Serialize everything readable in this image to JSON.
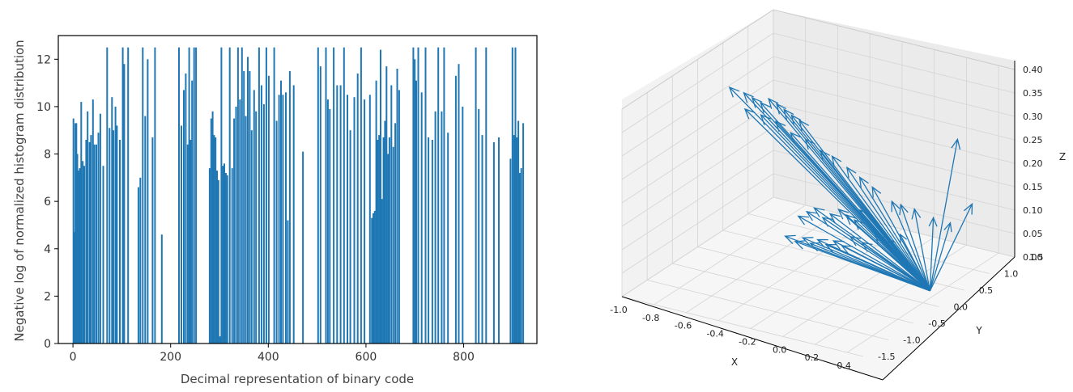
{
  "chart_data": [
    {
      "type": "bar",
      "xlabel": "Decimal representation of binary code",
      "ylabel": "Negative log of normalized histogram distribution",
      "xlim": [
        -30,
        950
      ],
      "ylim": [
        0,
        13
      ],
      "xticks": [
        0,
        200,
        400,
        600,
        800
      ],
      "yticks": [
        0,
        2,
        4,
        6,
        8,
        10,
        12
      ],
      "grid": false,
      "color": "#1f77b4",
      "bars": [
        {
          "x": 1,
          "y": 9.5
        },
        {
          "x": 3,
          "y": 4.7
        },
        {
          "x": 5,
          "y": 9.3
        },
        {
          "x": 7,
          "y": 9.3
        },
        {
          "x": 9,
          "y": 8.0
        },
        {
          "x": 11,
          "y": 7.3
        },
        {
          "x": 14,
          "y": 7.4
        },
        {
          "x": 17,
          "y": 10.2
        },
        {
          "x": 20,
          "y": 7.7
        },
        {
          "x": 23,
          "y": 7.5
        },
        {
          "x": 27,
          "y": 8.6
        },
        {
          "x": 30,
          "y": 9.8
        },
        {
          "x": 34,
          "y": 8.5
        },
        {
          "x": 37,
          "y": 8.8
        },
        {
          "x": 41,
          "y": 10.3
        },
        {
          "x": 44,
          "y": 8.4
        },
        {
          "x": 48,
          "y": 8.4
        },
        {
          "x": 52,
          "y": 8.9
        },
        {
          "x": 56,
          "y": 9.7
        },
        {
          "x": 62,
          "y": 7.5
        },
        {
          "x": 70,
          "y": 12.5
        },
        {
          "x": 75,
          "y": 9.1
        },
        {
          "x": 80,
          "y": 10.4
        },
        {
          "x": 83,
          "y": 9.0
        },
        {
          "x": 87,
          "y": 10.0
        },
        {
          "x": 90,
          "y": 9.2
        },
        {
          "x": 96,
          "y": 8.6
        },
        {
          "x": 102,
          "y": 12.5
        },
        {
          "x": 105,
          "y": 11.8
        },
        {
          "x": 113,
          "y": 12.5
        },
        {
          "x": 134,
          "y": 6.6
        },
        {
          "x": 138,
          "y": 7.0
        },
        {
          "x": 143,
          "y": 12.5
        },
        {
          "x": 148,
          "y": 9.6
        },
        {
          "x": 153,
          "y": 12.0
        },
        {
          "x": 163,
          "y": 8.7
        },
        {
          "x": 168,
          "y": 12.5
        },
        {
          "x": 182,
          "y": 4.6
        },
        {
          "x": 217,
          "y": 12.5
        },
        {
          "x": 222,
          "y": 9.2
        },
        {
          "x": 227,
          "y": 10.7
        },
        {
          "x": 231,
          "y": 11.4
        },
        {
          "x": 235,
          "y": 8.4
        },
        {
          "x": 238,
          "y": 12.5
        },
        {
          "x": 241,
          "y": 8.6
        },
        {
          "x": 244,
          "y": 11.1
        },
        {
          "x": 248,
          "y": 12.5
        },
        {
          "x": 252,
          "y": 12.5
        },
        {
          "x": 280,
          "y": 7.4
        },
        {
          "x": 283,
          "y": 9.5
        },
        {
          "x": 286,
          "y": 9.8
        },
        {
          "x": 289,
          "y": 8.8
        },
        {
          "x": 292,
          "y": 8.7
        },
        {
          "x": 295,
          "y": 7.3
        },
        {
          "x": 298,
          "y": 6.9
        },
        {
          "x": 301,
          "y": 0.3
        },
        {
          "x": 304,
          "y": 12.5
        },
        {
          "x": 307,
          "y": 7.5
        },
        {
          "x": 310,
          "y": 7.6
        },
        {
          "x": 313,
          "y": 7.2
        },
        {
          "x": 316,
          "y": 7.1
        },
        {
          "x": 321,
          "y": 12.5
        },
        {
          "x": 326,
          "y": 7.4
        },
        {
          "x": 330,
          "y": 9.5
        },
        {
          "x": 334,
          "y": 10.0
        },
        {
          "x": 338,
          "y": 12.5
        },
        {
          "x": 342,
          "y": 10.3
        },
        {
          "x": 346,
          "y": 12.5
        },
        {
          "x": 350,
          "y": 11.5
        },
        {
          "x": 354,
          "y": 9.6
        },
        {
          "x": 358,
          "y": 12.1
        },
        {
          "x": 362,
          "y": 11.5
        },
        {
          "x": 366,
          "y": 9.0
        },
        {
          "x": 371,
          "y": 10.7
        },
        {
          "x": 375,
          "y": 9.8
        },
        {
          "x": 381,
          "y": 12.5
        },
        {
          "x": 386,
          "y": 10.9
        },
        {
          "x": 391,
          "y": 10.1
        },
        {
          "x": 396,
          "y": 12.5
        },
        {
          "x": 401,
          "y": 11.3
        },
        {
          "x": 412,
          "y": 12.5
        },
        {
          "x": 417,
          "y": 9.4
        },
        {
          "x": 422,
          "y": 10.5
        },
        {
          "x": 426,
          "y": 11.1
        },
        {
          "x": 430,
          "y": 10.5
        },
        {
          "x": 436,
          "y": 10.6
        },
        {
          "x": 440,
          "y": 5.2
        },
        {
          "x": 444,
          "y": 11.5
        },
        {
          "x": 452,
          "y": 10.9
        },
        {
          "x": 471,
          "y": 8.1
        },
        {
          "x": 502,
          "y": 12.5
        },
        {
          "x": 507,
          "y": 11.7
        },
        {
          "x": 518,
          "y": 12.5
        },
        {
          "x": 522,
          "y": 10.3
        },
        {
          "x": 526,
          "y": 9.9
        },
        {
          "x": 534,
          "y": 12.5
        },
        {
          "x": 541,
          "y": 10.9
        },
        {
          "x": 548,
          "y": 10.9
        },
        {
          "x": 555,
          "y": 12.5
        },
        {
          "x": 562,
          "y": 10.5
        },
        {
          "x": 568,
          "y": 9.0
        },
        {
          "x": 576,
          "y": 10.4
        },
        {
          "x": 583,
          "y": 11.4
        },
        {
          "x": 590,
          "y": 12.5
        },
        {
          "x": 597,
          "y": 10.3
        },
        {
          "x": 608,
          "y": 10.5
        },
        {
          "x": 612,
          "y": 5.3
        },
        {
          "x": 615,
          "y": 5.5
        },
        {
          "x": 618,
          "y": 5.6
        },
        {
          "x": 621,
          "y": 11.1
        },
        {
          "x": 624,
          "y": 8.6
        },
        {
          "x": 627,
          "y": 8.8
        },
        {
          "x": 630,
          "y": 12.4
        },
        {
          "x": 633,
          "y": 6.1
        },
        {
          "x": 636,
          "y": 8.7
        },
        {
          "x": 639,
          "y": 9.4
        },
        {
          "x": 642,
          "y": 11.7
        },
        {
          "x": 645,
          "y": 8.0
        },
        {
          "x": 648,
          "y": 8.7
        },
        {
          "x": 652,
          "y": 10.9
        },
        {
          "x": 656,
          "y": 8.3
        },
        {
          "x": 660,
          "y": 9.3
        },
        {
          "x": 664,
          "y": 11.6
        },
        {
          "x": 668,
          "y": 10.7
        },
        {
          "x": 697,
          "y": 12.5
        },
        {
          "x": 700,
          "y": 12.0
        },
        {
          "x": 703,
          "y": 11.1
        },
        {
          "x": 707,
          "y": 12.5
        },
        {
          "x": 714,
          "y": 10.6
        },
        {
          "x": 722,
          "y": 12.5
        },
        {
          "x": 728,
          "y": 8.7
        },
        {
          "x": 736,
          "y": 8.6
        },
        {
          "x": 742,
          "y": 9.8
        },
        {
          "x": 748,
          "y": 12.5
        },
        {
          "x": 755,
          "y": 9.8
        },
        {
          "x": 760,
          "y": 12.5
        },
        {
          "x": 768,
          "y": 8.9
        },
        {
          "x": 784,
          "y": 11.3
        },
        {
          "x": 790,
          "y": 11.8
        },
        {
          "x": 798,
          "y": 10.0
        },
        {
          "x": 825,
          "y": 12.5
        },
        {
          "x": 831,
          "y": 9.9
        },
        {
          "x": 838,
          "y": 8.8
        },
        {
          "x": 846,
          "y": 12.5
        },
        {
          "x": 862,
          "y": 8.5
        },
        {
          "x": 872,
          "y": 8.7
        },
        {
          "x": 896,
          "y": 7.8
        },
        {
          "x": 900,
          "y": 12.5
        },
        {
          "x": 903,
          "y": 8.8
        },
        {
          "x": 906,
          "y": 12.5
        },
        {
          "x": 909,
          "y": 8.7
        },
        {
          "x": 912,
          "y": 9.4
        },
        {
          "x": 915,
          "y": 7.2
        },
        {
          "x": 918,
          "y": 7.4
        },
        {
          "x": 922,
          "y": 9.3
        }
      ]
    },
    {
      "type": "quiver3d",
      "xlabel": "X",
      "ylabel": "Y",
      "zlabel": "Z",
      "xlim": [
        -1.0,
        0.5
      ],
      "ylim": [
        -1.5,
        1.5
      ],
      "zlim": [
        0.0,
        0.4
      ],
      "xticks": [
        "-1.0",
        "-0.8",
        "-0.6",
        "-0.4",
        "-0.2",
        "0.0",
        "0.2",
        "0.4"
      ],
      "yticks": [
        "-1.5",
        "-1.0",
        "-0.5",
        "0.0",
        "0.5",
        "1.0",
        "1.5"
      ],
      "zticks": [
        "0.00",
        "0.05",
        "0.10",
        "0.15",
        "0.20",
        "0.25",
        "0.30",
        "0.35",
        "0.40"
      ],
      "grid": true,
      "color": "#1f77b4",
      "origin": [
        0.35,
        0.3,
        0.0
      ],
      "vector_tips": [
        [
          -0.89,
          0.28,
          0.33
        ],
        [
          -0.82,
          0.34,
          0.32
        ],
        [
          -0.78,
          0.38,
          0.31
        ],
        [
          -0.74,
          0.42,
          0.3
        ],
        [
          -0.7,
          0.45,
          0.31
        ],
        [
          -0.66,
          0.48,
          0.3
        ],
        [
          -0.62,
          0.5,
          0.29
        ],
        [
          -0.58,
          0.52,
          0.28
        ],
        [
          -0.54,
          0.55,
          0.27
        ],
        [
          -0.8,
          0.3,
          0.29
        ],
        [
          -0.72,
          0.36,
          0.28
        ],
        [
          -0.64,
          0.4,
          0.27
        ],
        [
          -0.56,
          0.44,
          0.25
        ],
        [
          -0.48,
          0.48,
          0.24
        ],
        [
          -0.4,
          0.52,
          0.22
        ],
        [
          -0.34,
          0.56,
          0.21
        ],
        [
          -0.26,
          0.6,
          0.19
        ],
        [
          -0.2,
          0.66,
          0.17
        ],
        [
          -0.14,
          0.72,
          0.15
        ],
        [
          -0.05,
          0.82,
          0.12
        ],
        [
          -0.02,
          0.9,
          0.11
        ],
        [
          0.04,
          0.98,
          0.1
        ],
        [
          0.12,
          1.1,
          0.08
        ],
        [
          0.2,
          1.18,
          0.07
        ],
        [
          0.27,
          1.1,
          0.26
        ],
        [
          0.33,
          1.2,
          0.12
        ],
        [
          -0.5,
          0.4,
          0.08
        ],
        [
          -0.46,
          0.44,
          0.09
        ],
        [
          -0.42,
          0.46,
          0.1
        ],
        [
          -0.38,
          0.5,
          0.08
        ],
        [
          -0.34,
          0.52,
          0.09
        ],
        [
          -0.3,
          0.56,
          0.1
        ],
        [
          -0.26,
          0.58,
          0.09
        ],
        [
          -0.22,
          0.62,
          0.08
        ],
        [
          -0.2,
          0.66,
          0.1
        ],
        [
          -0.55,
          0.3,
          0.04
        ],
        [
          -0.5,
          0.34,
          0.03
        ],
        [
          -0.46,
          0.36,
          0.04
        ],
        [
          -0.42,
          0.38,
          0.03
        ],
        [
          -0.38,
          0.4,
          0.04
        ],
        [
          -0.34,
          0.44,
          0.03
        ],
        [
          -0.3,
          0.46,
          0.04
        ],
        [
          -0.26,
          0.5,
          0.03
        ],
        [
          -0.22,
          0.54,
          0.05
        ],
        [
          -0.16,
          0.58,
          0.04
        ],
        [
          -0.1,
          0.64,
          0.06
        ],
        [
          -0.04,
          0.7,
          0.05
        ],
        [
          0.02,
          0.76,
          0.06
        ]
      ]
    }
  ]
}
